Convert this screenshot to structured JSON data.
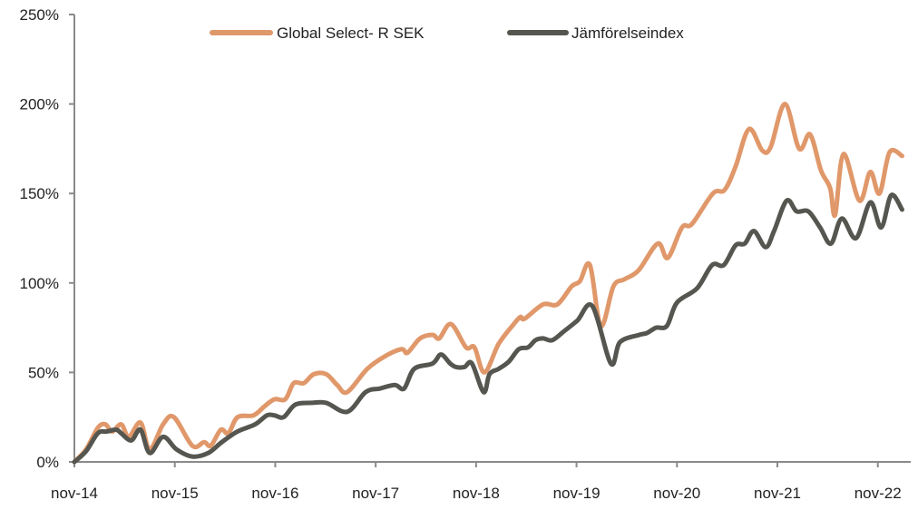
{
  "chart_data": {
    "type": "line",
    "title": "",
    "xlabel": "",
    "ylabel": "",
    "x_unit": "months since nov-14",
    "xlim": [
      0,
      99.5
    ],
    "ylim": [
      0,
      250
    ],
    "y_ticks": [
      0,
      50,
      100,
      150,
      200,
      250
    ],
    "y_tick_labels": [
      "0%",
      "50%",
      "100%",
      "150%",
      "200%",
      "250%"
    ],
    "x_ticks": [
      0,
      12,
      24,
      36,
      48,
      60,
      72,
      84,
      96
    ],
    "x_tick_labels": [
      "nov-14",
      "nov-15",
      "nov-16",
      "nov-17",
      "nov-18",
      "nov-19",
      "nov-20",
      "nov-21",
      "nov-22"
    ],
    "grid": false,
    "legend_position": "top",
    "series": [
      {
        "name": "Global Select- R SEK",
        "color": "#E0986A",
        "x": [
          0,
          1.4,
          2.8,
          3.7,
          4.5,
          5.6,
          6.5,
          7.9,
          9.0,
          10.6,
          11.9,
          14.1,
          15.5,
          16.3,
          17.5,
          18.4,
          19.5,
          21.4,
          22.7,
          23.9,
          25.2,
          26.2,
          27.4,
          28.6,
          30.1,
          31.4,
          32.6,
          35.0,
          37.1,
          39.1,
          39.8,
          41.3,
          42.8,
          43.6,
          45.0,
          46.8,
          47.8,
          49.0,
          50.7,
          52.5,
          53.3,
          53.8,
          56.0,
          57.7,
          59.4,
          60.4,
          61.6,
          62.9,
          64.4,
          65.7,
          67.4,
          69.7,
          70.9,
          72.6,
          73.8,
          76.3,
          77.7,
          79.0,
          80.6,
          82.2,
          83.2,
          84.9,
          86.6,
          87.9,
          89.2,
          90.3,
          90.9,
          91.9,
          93.8,
          95.1,
          96.2,
          97.4,
          98.9
        ],
        "values": [
          0,
          7,
          19,
          21,
          17,
          21,
          14,
          22,
          7,
          21,
          25,
          9,
          11,
          9,
          18,
          16,
          25,
          26,
          31,
          35,
          35,
          44,
          44,
          49,
          49,
          43,
          39,
          52,
          59,
          63,
          61,
          69,
          71,
          69,
          77,
          64,
          64,
          50,
          66,
          77,
          81,
          80,
          88,
          88,
          98,
          101,
          110,
          76,
          98,
          102,
          107,
          122,
          114,
          131,
          133,
          150,
          152,
          165,
          186,
          174,
          176,
          200,
          175,
          183,
          163,
          153,
          138,
          172,
          146,
          162,
          150,
          173,
          171
        ]
      },
      {
        "name": "Jämförelseindex",
        "color": "#55564F",
        "x": [
          0,
          1.4,
          2.8,
          3.9,
          5.0,
          5.6,
          6.8,
          7.9,
          9.0,
          10.6,
          12.2,
          14.1,
          16.0,
          17.6,
          19.5,
          21.6,
          23.0,
          23.9,
          25.0,
          26.4,
          28.4,
          30.1,
          32.6,
          34.8,
          36.5,
          38.3,
          39.4,
          40.6,
          42.8,
          43.8,
          44.9,
          45.6,
          46.6,
          47.5,
          48.9,
          49.6,
          50.7,
          51.9,
          53.1,
          54.2,
          55.1,
          56.0,
          57.1,
          58.5,
          60.1,
          61.9,
          64.1,
          65.2,
          67.5,
          68.4,
          69.5,
          70.8,
          72.0,
          74.4,
          76.2,
          77.6,
          79.0,
          80.1,
          81.2,
          82.6,
          83.6,
          85.1,
          86.3,
          87.7,
          89.1,
          90.4,
          91.7,
          93.4,
          95.1,
          96.4,
          97.6,
          98.9
        ],
        "values": [
          0,
          6,
          16,
          17,
          18,
          16,
          12,
          18,
          5,
          14,
          7,
          3,
          5,
          11,
          17,
          21,
          26,
          26,
          25,
          32,
          33,
          33,
          28,
          39,
          41,
          43,
          41,
          52,
          55,
          60,
          55,
          53,
          53,
          55,
          39,
          49,
          52,
          56,
          63,
          64,
          68,
          69,
          68,
          73,
          79,
          87,
          55,
          67,
          71,
          72,
          75,
          76,
          89,
          97,
          110,
          110,
          121,
          122,
          129,
          120,
          129,
          146,
          140,
          140,
          131,
          122,
          136,
          125,
          145,
          131,
          149,
          141
        ]
      }
    ]
  }
}
